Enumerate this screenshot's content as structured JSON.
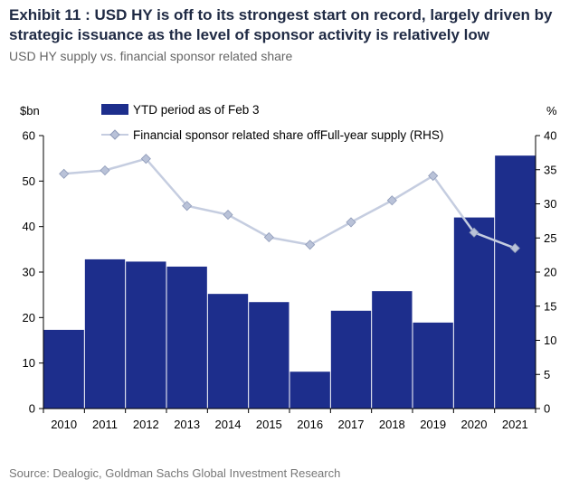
{
  "header": {
    "title": "Exhibit 11 : USD HY is off to its strongest start on record, largely driven by strategic issuance as the level of sponsor activity is relatively low",
    "subtitle": "USD HY supply vs. financial sponsor related share",
    "source": "Source: Dealogic, Goldman Sachs Global Investment Research"
  },
  "colors": {
    "bar": "#1d2e8c",
    "line": "#c5cde0",
    "marker": "#b9c2d8",
    "marker_stroke": "#8e9ab8"
  },
  "chart_data": {
    "type": "bar",
    "title": "",
    "categories": [
      "2010",
      "2011",
      "2012",
      "2013",
      "2014",
      "2015",
      "2016",
      "2017",
      "2018",
      "2019",
      "2020",
      "2021"
    ],
    "series": [
      {
        "name": "YTD period as of Feb 3",
        "type": "bar",
        "axis": "left",
        "values": [
          17.3,
          32.8,
          32.3,
          31.2,
          25.2,
          23.4,
          8.1,
          21.5,
          25.8,
          18.9,
          42.0,
          55.6
        ]
      },
      {
        "name": "Financial sponsor related share offFull-year supply (RHS)",
        "type": "line",
        "axis": "right",
        "values": [
          34.4,
          34.9,
          36.6,
          29.7,
          28.4,
          25.1,
          24.0,
          27.3,
          30.5,
          34.1,
          25.8,
          23.5
        ]
      }
    ],
    "yleft": {
      "label": "$bn",
      "lim": [
        0,
        60
      ],
      "ticks": [
        0,
        10,
        20,
        30,
        40,
        50,
        60
      ]
    },
    "yright": {
      "label": "%",
      "lim": [
        0,
        40
      ],
      "ticks": [
        0,
        5,
        10,
        15,
        20,
        25,
        30,
        35,
        40
      ]
    },
    "grid": false,
    "legend": "top-center"
  }
}
